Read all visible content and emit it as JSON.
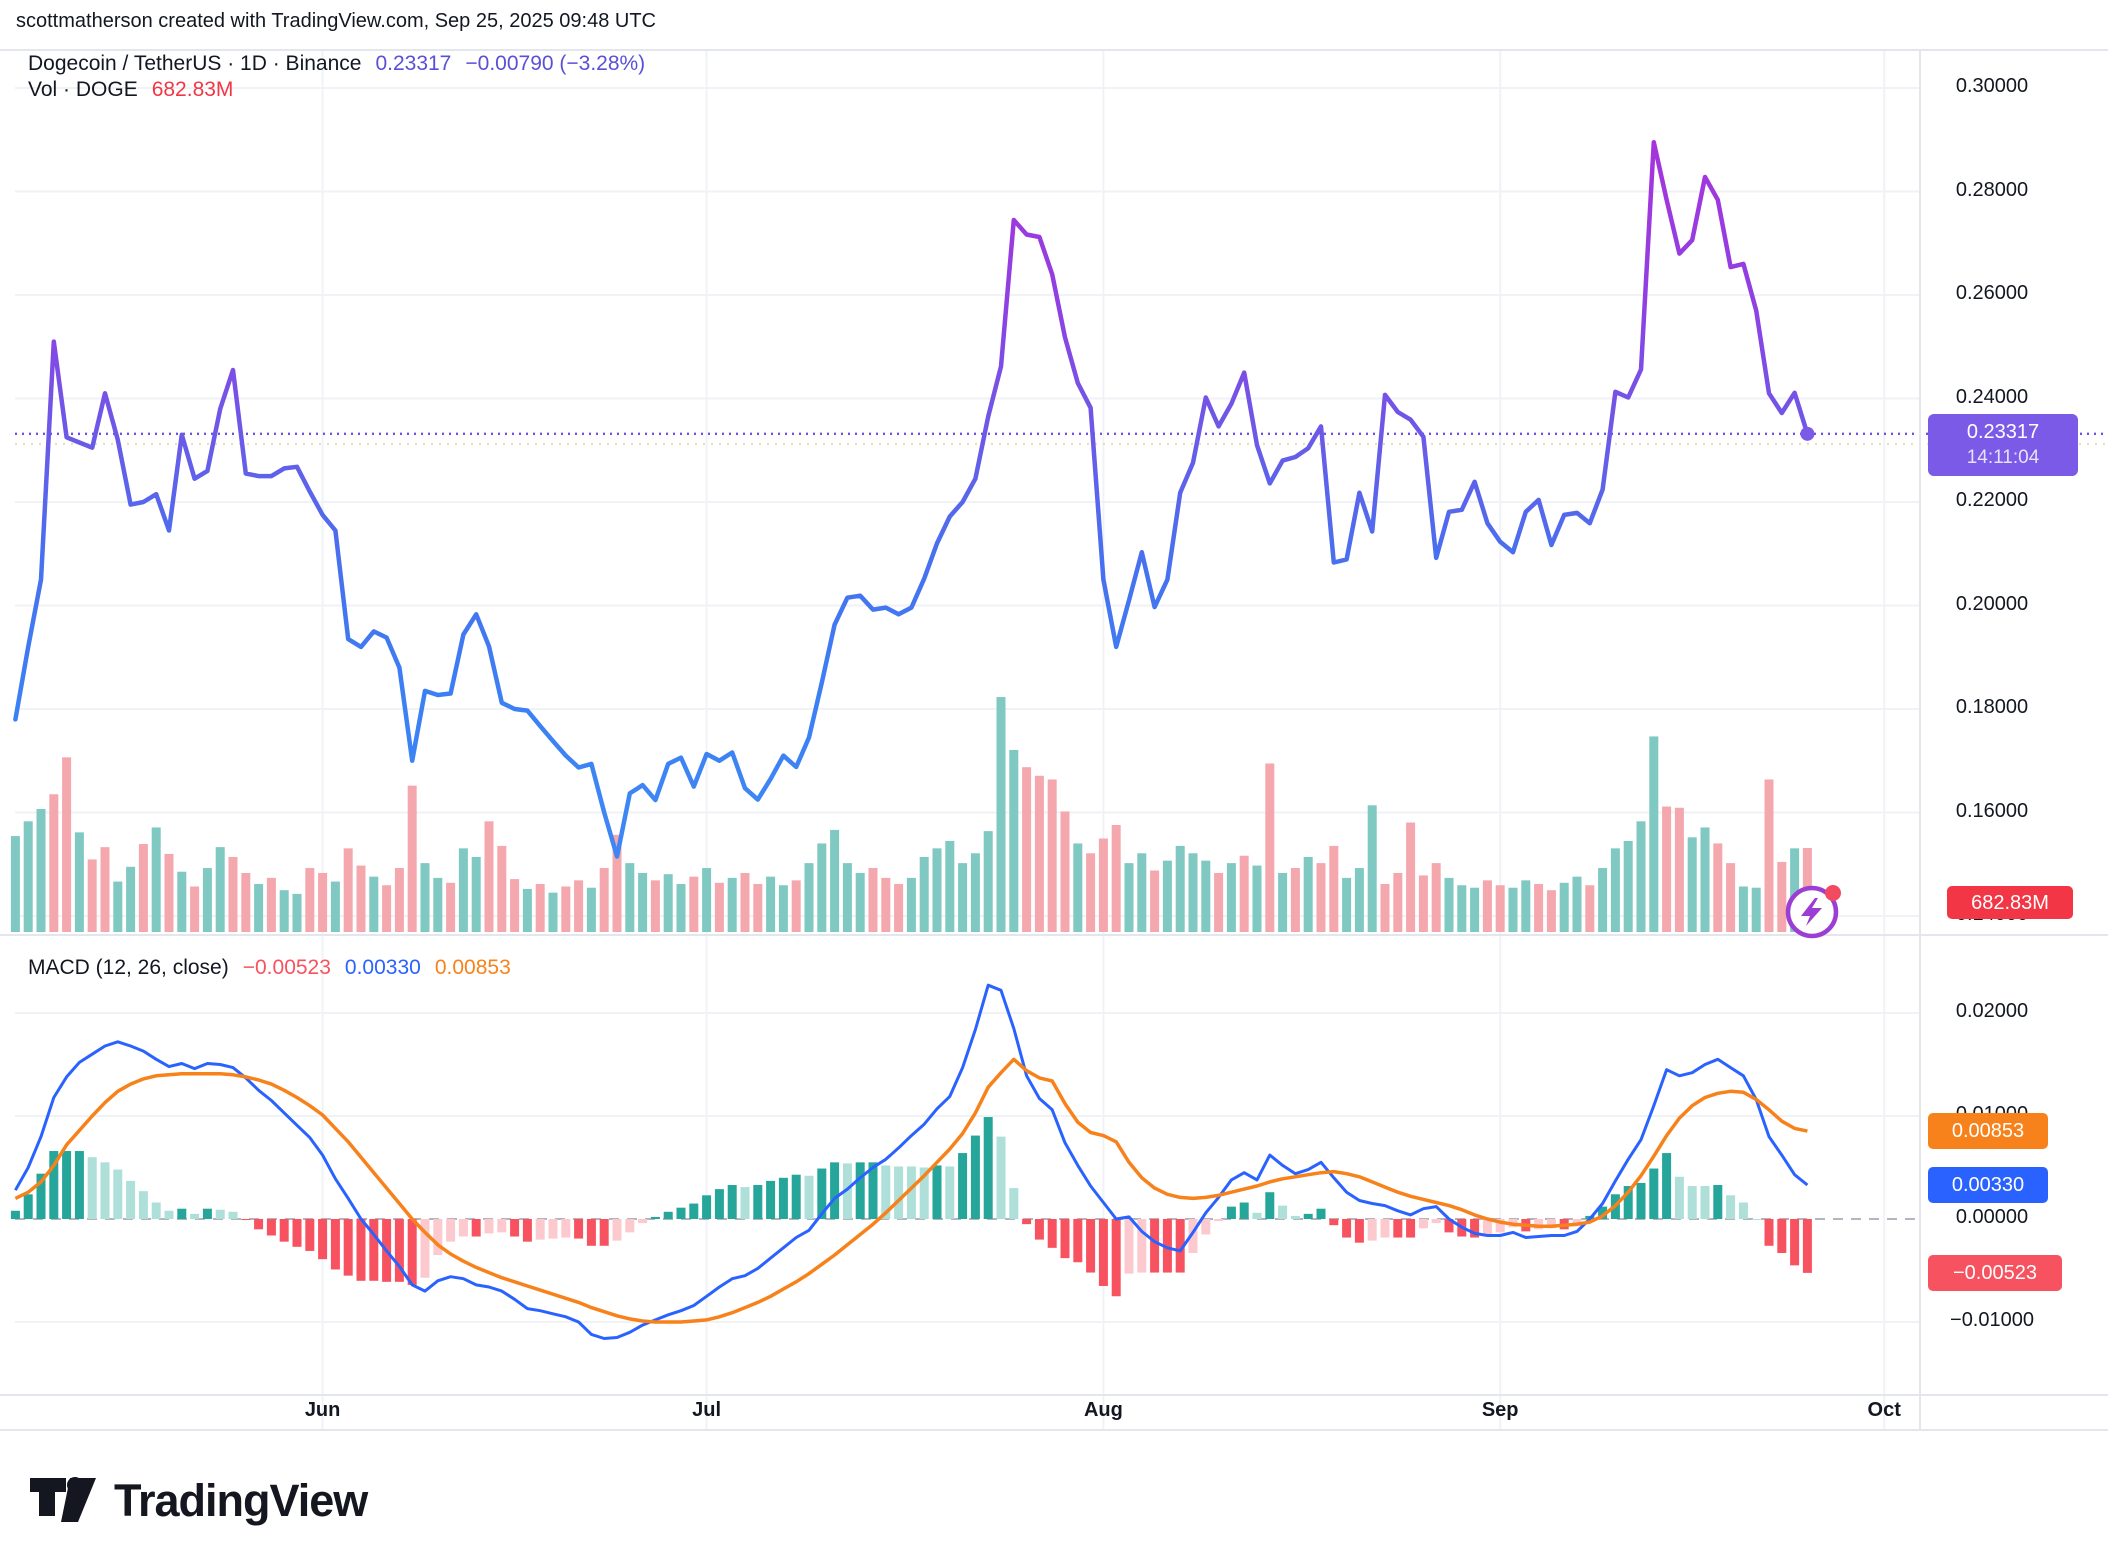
{
  "attribution": "scottmatherson created with TradingView.com, Sep 25, 2025 09:48 UTC",
  "header": {
    "symbol": "Dogecoin / TetherUS · 1D · Binance",
    "price": "0.23317",
    "change": "−0.00790 (−3.28%)",
    "vol_label": "Vol · DOGE",
    "vol_value": "682.83M"
  },
  "macd_legend": {
    "title": "MACD (12, 26, close)",
    "hist_value": "−0.00523",
    "macd_value": "0.00330",
    "signal_value": "0.00853"
  },
  "price_axis": {
    "labels": [
      {
        "text": "0.30000",
        "value": 0.3
      },
      {
        "text": "0.28000",
        "value": 0.28
      },
      {
        "text": "0.26000",
        "value": 0.26
      },
      {
        "text": "0.24000",
        "value": 0.24
      },
      {
        "text": "0.22000",
        "value": 0.22
      },
      {
        "text": "0.20000",
        "value": 0.2
      },
      {
        "text": "0.18000",
        "value": 0.18
      },
      {
        "text": "0.16000",
        "value": 0.16
      },
      {
        "text": "0.14000",
        "value": 0.14
      }
    ],
    "badge": {
      "price": "0.23317",
      "time": "14:11:04"
    }
  },
  "volume_badge": "682.83M",
  "macd_axis": {
    "labels": [
      {
        "text": "0.02000",
        "value": 0.02
      },
      {
        "text": "0.01000",
        "value": 0.01
      },
      {
        "text": "0.00000",
        "value": 0.0
      },
      {
        "text": "−0.01000",
        "value": -0.01
      }
    ],
    "badges": [
      {
        "text": "0.00853",
        "value": 0.00853
      },
      {
        "text": "0.00330",
        "value": 0.0033
      },
      {
        "text": "−0.00523",
        "value": -0.00523
      }
    ]
  },
  "time_axis": {
    "labels": [
      "Jun",
      "Jul",
      "Aug",
      "Sep",
      "Oct"
    ]
  },
  "logo_text": "TradingView",
  "colors": {
    "text": "#131722",
    "header_accent": "#5A50D8",
    "grid": "#F1F2F6",
    "separator": "#E3E6EC",
    "price_line_top": "#AD30DA",
    "price_line_mid": "#6C59E7",
    "price_line_bottom": "#3F86F5",
    "current_price_badge": "#7A5AE6",
    "dotted_price_line": "#6C50E4",
    "prev_close_line": "#E9D9A5",
    "vol_up": "#7FC9C2",
    "vol_down": "#F4A7AD",
    "vol_badge": "#F23645",
    "macd_line": "#2962FF",
    "signal_line": "#F7821B",
    "hist_up": "#26A69A",
    "hist_up_light": "#AEDFD8",
    "hist_down": "#F7525F",
    "hist_down_light": "#FBC9CE",
    "zero_line": "#B2B5BE",
    "lightning": "#9C3DD3",
    "lightning_dot": "#F24A5E"
  },
  "chart_data": {
    "type": "multi-pane",
    "symbol": "Dogecoin / TetherUS",
    "exchange": "Binance",
    "interval": "1D",
    "start_date": "2025-05-08",
    "end_date": "2025-09-25",
    "current_price": 0.23317,
    "current_time": "14:11:04",
    "price_ylim": [
      0.14,
      0.305
    ],
    "macd_ylim": [
      -0.015,
      0.025
    ],
    "volume_unit": "millions DOGE",
    "panes": [
      {
        "name": "price",
        "type": "line",
        "values": [
          0.178,
          0.192,
          0.205,
          0.251,
          0.2325,
          0.2315,
          0.2305,
          0.241,
          0.232,
          0.2195,
          0.22,
          0.2215,
          0.2145,
          0.233,
          0.2245,
          0.226,
          0.238,
          0.2455,
          0.2255,
          0.225,
          0.225,
          0.2265,
          0.2268,
          0.222,
          0.2175,
          0.2145,
          0.1935,
          0.192,
          0.195,
          0.1938,
          0.188,
          0.17,
          0.1835,
          0.1827,
          0.183,
          0.1944,
          0.1983,
          0.1921,
          0.1812,
          0.18,
          0.1797,
          0.1767,
          0.1738,
          0.171,
          0.1687,
          0.1694,
          0.16,
          0.1515,
          0.1637,
          0.1653,
          0.1624,
          0.1694,
          0.1706,
          0.165,
          0.1713,
          0.17,
          0.1716,
          0.1647,
          0.1625,
          0.1665,
          0.171,
          0.1688,
          0.1745,
          0.1851,
          0.1963,
          0.2015,
          0.2019,
          0.1992,
          0.1996,
          0.1983,
          0.1996,
          0.2052,
          0.212,
          0.2172,
          0.22,
          0.2245,
          0.2365,
          0.2462,
          0.2745,
          0.2717,
          0.2712,
          0.264,
          0.2518,
          0.243,
          0.2382,
          0.205,
          0.192,
          0.201,
          0.2103,
          0.1997,
          0.205,
          0.2218,
          0.2276,
          0.2402,
          0.2346,
          0.239,
          0.245,
          0.231,
          0.2236,
          0.228,
          0.2287,
          0.2304,
          0.2346,
          0.2083,
          0.2089,
          0.2218,
          0.2143,
          0.2407,
          0.2374,
          0.2359,
          0.2326,
          0.2092,
          0.2181,
          0.2185,
          0.2239,
          0.2159,
          0.2123,
          0.2103,
          0.2181,
          0.2204,
          0.2117,
          0.2175,
          0.2179,
          0.2159,
          0.2224,
          0.2413,
          0.2402,
          0.2456,
          0.2895,
          0.2784,
          0.268,
          0.2706,
          0.2828,
          0.2784,
          0.2654,
          0.266,
          0.257,
          0.241,
          0.2372,
          0.2411,
          0.23317
        ]
      },
      {
        "name": "volume",
        "type": "bar",
        "values": [
          780,
          900,
          1000,
          1120,
          1420,
          810,
          590,
          690,
          410,
          530,
          715,
          850,
          635,
          490,
          370,
          520,
          690,
          610,
          480,
          390,
          440,
          340,
          310,
          520,
          480,
          410,
          680,
          540,
          450,
          380,
          520,
          1190,
          560,
          440,
          400,
          680,
          610,
          900,
          700,
          430,
          350,
          390,
          320,
          370,
          420,
          360,
          520,
          790,
          560,
          480,
          420,
          470,
          390,
          450,
          520,
          400,
          440,
          480,
          390,
          450,
          380,
          420,
          560,
          720,
          830,
          560,
          480,
          520,
          440,
          390,
          440,
          610,
          680,
          740,
          560,
          640,
          820,
          1910,
          1480,
          1340,
          1270,
          1240,
          980,
          720,
          640,
          760,
          870,
          560,
          640,
          500,
          580,
          700,
          640,
          580,
          480,
          560,
          620,
          540,
          1370,
          480,
          520,
          610,
          560,
          700,
          440,
          520,
          1030,
          390,
          480,
          890,
          460,
          560,
          440,
          380,
          360,
          420,
          380,
          360,
          420,
          390,
          340,
          400,
          450,
          380,
          520,
          680,
          740,
          900,
          1590,
          1020,
          1010,
          770,
          850,
          720,
          560,
          370,
          360,
          1240,
          570,
          680,
          683
        ],
        "directions": "gggrrgrrggrgrgrggrrgrggrrgrrgrrrggrggrrrgrgrrgrrggrggrgrgrrggrgggggrrrgggggggggrrrrgrrrggrggggrgrgrgrgrrgggrrrrrgggrrggrrggrgggggrrggrrggrrgr"
      },
      {
        "name": "macd",
        "type": "line",
        "params": "12, 26, close",
        "series": [
          {
            "name": "macd",
            "values": [
              0.0028,
              0.005,
              0.008,
              0.0118,
              0.0138,
              0.0152,
              0.016,
              0.0168,
              0.0172,
              0.0168,
              0.0163,
              0.0155,
              0.0148,
              0.0151,
              0.0146,
              0.0151,
              0.015,
              0.0147,
              0.0137,
              0.0125,
              0.0115,
              0.0103,
              0.0091,
              0.0079,
              0.0062,
              0.0039,
              0.002,
              0.0,
              -0.0015,
              -0.0031,
              -0.0046,
              -0.0064,
              -0.007,
              -0.006,
              -0.0056,
              -0.0058,
              -0.0064,
              -0.0066,
              -0.007,
              -0.0078,
              -0.0087,
              -0.0089,
              -0.0092,
              -0.0095,
              -0.01,
              -0.0112,
              -0.0116,
              -0.0115,
              -0.011,
              -0.0103,
              -0.0098,
              -0.0093,
              -0.0089,
              -0.0084,
              -0.0075,
              -0.0066,
              -0.0058,
              -0.0055,
              -0.0048,
              -0.0038,
              -0.0028,
              -0.0018,
              -0.0011,
              0.0005,
              0.002,
              0.0029,
              0.004,
              0.005,
              0.0058,
              0.0069,
              0.0081,
              0.0092,
              0.0107,
              0.0119,
              0.0147,
              0.0184,
              0.0227,
              0.0222,
              0.0185,
              0.0139,
              0.0117,
              0.0106,
              0.0074,
              0.0052,
              0.0032,
              0.0016,
              0.0,
              0.0002,
              -0.0012,
              -0.0022,
              -0.0028,
              -0.0031,
              -0.0013,
              0.0006,
              0.0021,
              0.0038,
              0.0045,
              0.0038,
              0.0062,
              0.0052,
              0.0044,
              0.0048,
              0.0055,
              0.004,
              0.0026,
              0.0018,
              0.0015,
              0.0013,
              0.0008,
              0.0004,
              0.001,
              0.0012,
              0.0,
              -0.0008,
              -0.0014,
              -0.0016,
              -0.0016,
              -0.0013,
              -0.0018,
              -0.0017,
              -0.0016,
              -0.0016,
              -0.0012,
              0.0,
              0.0015,
              0.0037,
              0.0058,
              0.0077,
              0.011,
              0.0145,
              0.0139,
              0.0142,
              0.015,
              0.0155,
              0.0147,
              0.0139,
              0.0116,
              0.008,
              0.0062,
              0.0043,
              0.0033
            ]
          },
          {
            "name": "signal",
            "values": [
              0.002,
              0.0026,
              0.0036,
              0.0052,
              0.0072,
              0.0086,
              0.01,
              0.0113,
              0.0124,
              0.0131,
              0.0136,
              0.0139,
              0.014,
              0.0141,
              0.0141,
              0.0141,
              0.0141,
              0.014,
              0.0138,
              0.0135,
              0.0131,
              0.0125,
              0.0118,
              0.011,
              0.0101,
              0.0088,
              0.0075,
              0.006,
              0.0045,
              0.003,
              0.0015,
              0.0,
              -0.0013,
              -0.0025,
              -0.0034,
              -0.0041,
              -0.0047,
              -0.0052,
              -0.0057,
              -0.0061,
              -0.0065,
              -0.0069,
              -0.0073,
              -0.0077,
              -0.0081,
              -0.0086,
              -0.009,
              -0.0094,
              -0.0097,
              -0.0099,
              -0.01,
              -0.01,
              -0.01,
              -0.0099,
              -0.0098,
              -0.0095,
              -0.0091,
              -0.0086,
              -0.0081,
              -0.0075,
              -0.0068,
              -0.0061,
              -0.0053,
              -0.0044,
              -0.0035,
              -0.0025,
              -0.0015,
              -0.0005,
              0.0006,
              0.0018,
              0.003,
              0.0042,
              0.0055,
              0.0068,
              0.0083,
              0.0103,
              0.0128,
              0.0142,
              0.0155,
              0.0144,
              0.0137,
              0.0134,
              0.0112,
              0.0094,
              0.0084,
              0.0081,
              0.0075,
              0.0055,
              0.004,
              0.003,
              0.0024,
              0.0021,
              0.002,
              0.0021,
              0.0023,
              0.0026,
              0.0029,
              0.0032,
              0.0036,
              0.0039,
              0.0041,
              0.0043,
              0.0045,
              0.0046,
              0.0044,
              0.0041,
              0.0036,
              0.0031,
              0.0026,
              0.0022,
              0.0019,
              0.0016,
              0.0013,
              0.0009,
              0.0004,
              0.0,
              -0.0003,
              -0.0005,
              -0.0006,
              -0.0007,
              -0.0007,
              -0.0006,
              -0.0005,
              -0.0003,
              0.0003,
              0.0013,
              0.0026,
              0.0042,
              0.0061,
              0.0081,
              0.0098,
              0.011,
              0.0118,
              0.0122,
              0.0124,
              0.0123,
              0.0116,
              0.0106,
              0.0095,
              0.0088,
              0.00853
            ]
          },
          {
            "name": "histogram",
            "derived": "macd - signal",
            "last_value": -0.00523
          }
        ]
      }
    ]
  }
}
